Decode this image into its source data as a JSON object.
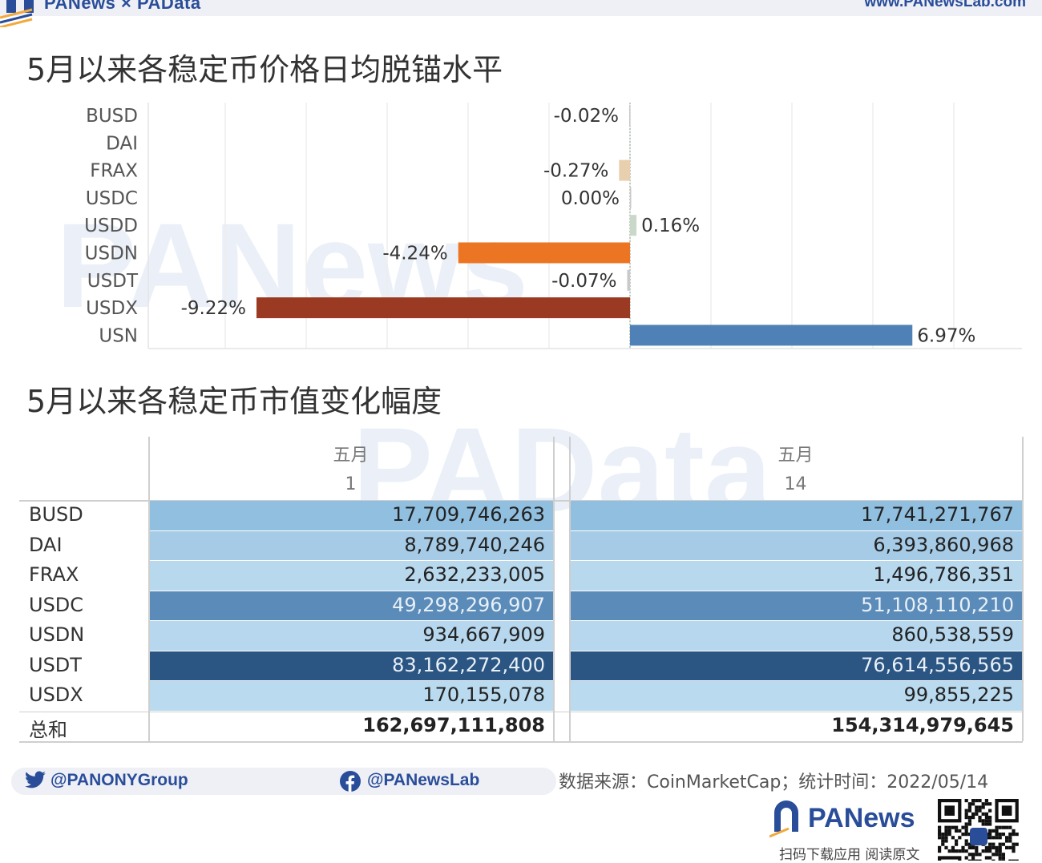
{
  "header": {
    "brand": "PANews × PAData",
    "url": "www.PANewsLab.com"
  },
  "watermark": {
    "text1": "PANews",
    "text2": "PAData"
  },
  "colors": {
    "brand_blue": "#2a4d9a",
    "bar_frax": "#e8cfae",
    "bar_usdd": "#c9d8c9",
    "bar_usdn": "#ec7524",
    "bar_usdx": "#9b3a22",
    "bar_usn": "#4f81b7",
    "bar_other": "#c9c9c9"
  },
  "chart1": {
    "title": "5月以来各稳定币价格日均脱锚水平"
  },
  "chart_data": [
    {
      "type": "bar",
      "orientation": "horizontal",
      "title": "5月以来各稳定币价格日均脱锚水平",
      "categories": [
        "BUSD",
        "DAI",
        "FRAX",
        "USDC",
        "USDD",
        "USDN",
        "USDT",
        "USDX",
        "USN"
      ],
      "values": [
        -0.02,
        null,
        -0.27,
        0.0,
        0.16,
        -4.24,
        -0.07,
        -9.22,
        6.97
      ],
      "data_labels": [
        "-0.02%",
        "",
        "-0.27%",
        "0.00%",
        "0.16%",
        "-4.24%",
        "-0.07%",
        "-9.22%",
        "6.97%"
      ],
      "unit": "%",
      "xlim": [
        -12,
        10
      ],
      "grid": true,
      "legend": "none"
    },
    {
      "type": "table",
      "title": "5月以来各稳定币市值变化幅度",
      "column_month": "五月",
      "columns": [
        "1",
        "14"
      ],
      "rows": [
        "BUSD",
        "DAI",
        "FRAX",
        "USDC",
        "USDN",
        "USDT",
        "USDX",
        "总和"
      ],
      "values": [
        [
          "17,709,746,263",
          "17,741,271,767"
        ],
        [
          "8,789,740,246",
          "6,393,860,968"
        ],
        [
          "2,632,233,005",
          "1,496,786,351"
        ],
        [
          "49,298,296,907",
          "51,108,110,210"
        ],
        [
          "934,667,909",
          "860,538,559"
        ],
        [
          "83,162,272,400",
          "76,614,556,565"
        ],
        [
          "170,155,078",
          "99,855,225"
        ],
        [
          "162,697,111,808",
          "154,314,979,645"
        ]
      ],
      "cell_colors": [
        "#91bfdf",
        "#a6cbe6",
        "#b8d8ee",
        "#5b8cb9",
        "#b6d7ee",
        "#2b5582",
        "#b9daef",
        "#ffffff"
      ],
      "light_text_rows": [
        3,
        5
      ]
    }
  ],
  "footer": {
    "twitter": "@PANONYGroup",
    "facebook": "@PANewsLab",
    "source": "数据来源：CoinMarketCap；统计时间：2022/05/14",
    "logo": "PANews",
    "qr_caption": "扫码下载应用  阅读原文"
  }
}
